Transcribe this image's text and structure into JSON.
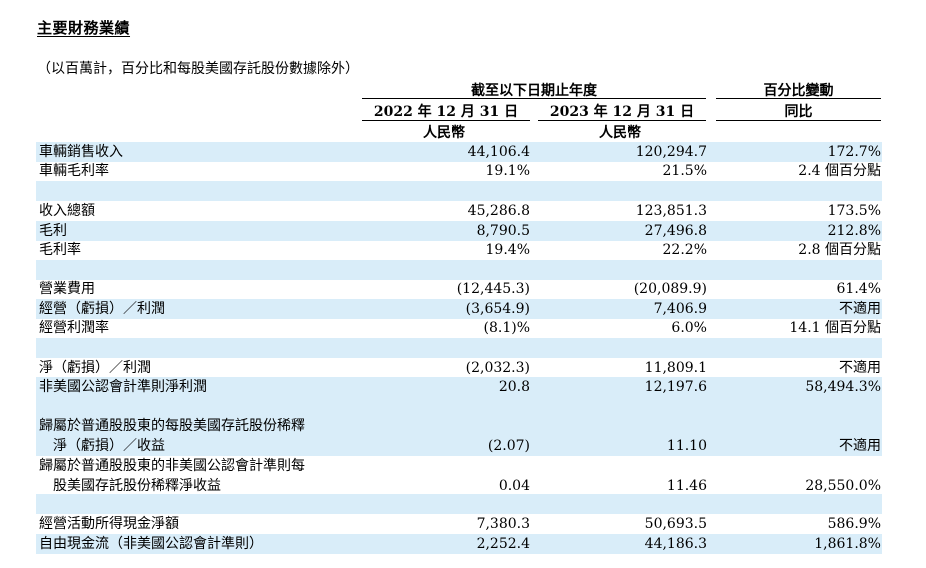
{
  "title": "主要財務業績",
  "subtitle": "（以百萬計，百分比和每股美國存託股份數據除外）",
  "header": {
    "period_group": "截至以下日期止年度",
    "change_group": "百分比變動",
    "col1_date": "2022 年 12 月 31 日",
    "col2_date": "2023 年 12 月 31 日",
    "change_sub": "同比",
    "col1_currency": "人民幣",
    "col2_currency": "人民幣"
  },
  "rows": [
    {
      "label": "車輛銷售收入",
      "v2022": "44,106.4",
      "v2023": "120,294.7",
      "change": "172.7%"
    },
    {
      "label": "車輛毛利率",
      "v2022": "19.1%",
      "v2023": "21.5%",
      "change": "2.4 個百分點"
    },
    {
      "label": "收入總額",
      "v2022": "45,286.8",
      "v2023": "123,851.3",
      "change": "173.5%"
    },
    {
      "label": "毛利",
      "v2022": "8,790.5",
      "v2023": "27,496.8",
      "change": "212.8%"
    },
    {
      "label": "毛利率",
      "v2022": "19.4%",
      "v2023": "22.2%",
      "change": "2.8 個百分點"
    },
    {
      "label": "營業費用",
      "v2022": "(12,445.3)",
      "v2023": "(20,089.9)",
      "change": "61.4%"
    },
    {
      "label": "經營（虧損）／利潤",
      "v2022": "(3,654.9)",
      "v2023": "7,406.9",
      "change": "不適用"
    },
    {
      "label": "經營利潤率",
      "v2022": "(8.1)%",
      "v2023": "6.0%",
      "change": "14.1 個百分點"
    },
    {
      "label": "淨（虧損）／利潤",
      "v2022": "(2,032.3)",
      "v2023": "11,809.1",
      "change": "不適用"
    },
    {
      "label": "非美國公認會計準則淨利潤",
      "v2022": "20.8",
      "v2023": "12,197.6",
      "change": "58,494.3%"
    },
    {
      "label": "歸屬於普通股股東的每股美國存託股份稀釋",
      "v2022": "",
      "v2023": "",
      "change": ""
    },
    {
      "label": "淨（虧損）／收益",
      "v2022": "(2.07)",
      "v2023": "11.10",
      "change": "不適用"
    },
    {
      "label": "歸屬於普通股股東的非美國公認會計準則每",
      "v2022": "",
      "v2023": "",
      "change": ""
    },
    {
      "label": "股美國存託股份稀釋淨收益",
      "v2022": "0.04",
      "v2023": "11.46",
      "change": "28,550.0%"
    },
    {
      "label": "經營活動所得現金淨額",
      "v2022": "7,380.3",
      "v2023": "50,693.5",
      "change": "586.9%"
    },
    {
      "label": "自由現金流（非美國公認會計準則）",
      "v2022": "2,252.4",
      "v2023": "44,186.3",
      "change": "1,861.8%"
    }
  ]
}
